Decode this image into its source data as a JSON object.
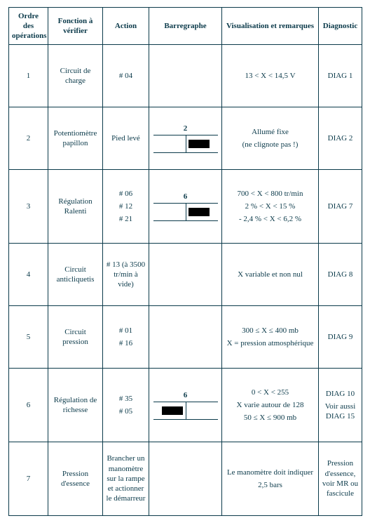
{
  "table": {
    "headers": {
      "order": "Ordre des opérations",
      "func": "Fonction à vérifier",
      "action": "Action",
      "bar": "Barregraphe",
      "vis": "Visualisation et remarques",
      "diag": "Diagnostic"
    },
    "rows": [
      {
        "order": "1",
        "func": "Circuit de charge",
        "action1": "# 04",
        "bar": null,
        "vis1": "13 < X < 14,5 V",
        "diag1": "DIAG 1"
      },
      {
        "order": "2",
        "func": "Potentiomètre papillon",
        "action1": "Pied levé",
        "bar": {
          "label": "2",
          "side": "right"
        },
        "vis1": "Allumé fixe",
        "vis2": "(ne clignote pas !)",
        "diag1": "DIAG 2"
      },
      {
        "order": "3",
        "func": "Régulation Ralenti",
        "action1": "# 06",
        "action2": "# 12",
        "action3": "# 21",
        "bar": {
          "label": "6",
          "side": "right"
        },
        "vis1": "700 < X < 800 tr/min",
        "vis2": "2 % < X < 15 %",
        "vis3": "- 2,4 % < X < 6,2 %",
        "diag1": "DIAG 7"
      },
      {
        "order": "4",
        "func": "Circuit anticliquetis",
        "action1": "# 13 (à 3500 tr/min à vide)",
        "bar": null,
        "vis1": "X variable et non nul",
        "diag1": "DIAG 8"
      },
      {
        "order": "5",
        "func": "Circuit pression",
        "action1": "# 01",
        "action2": "# 16",
        "bar": null,
        "vis1": "300 ≤ X ≤ 400 mb",
        "vis2": "X = pression atmosphérique",
        "diag1": "DIAG 9"
      },
      {
        "order": "6",
        "func": "Régulation de richesse",
        "action1": "# 35",
        "action2": "# 05",
        "bar": {
          "label": "6",
          "side": "left"
        },
        "vis1": "0 < X < 255",
        "vis2": "X varie autour de 128",
        "vis3": "50 ≤ X ≤ 900 mb",
        "diag1": "DIAG 10",
        "diag2": "Voir aussi DIAG 15"
      },
      {
        "order": "7",
        "func": "Pression d'essence",
        "action1": "Brancher un manomètre sur la rampe et actionner le démarreur",
        "bar": null,
        "vis1": "Le manomètre doit indiquer",
        "vis2": "2,5 bars",
        "diag1": "Pression d'essence, voir MR ou fascicule"
      }
    ]
  },
  "colors": {
    "text": "#0b3a4a",
    "border": "#0b3a4a",
    "background": "#ffffff",
    "block": "#000000"
  }
}
